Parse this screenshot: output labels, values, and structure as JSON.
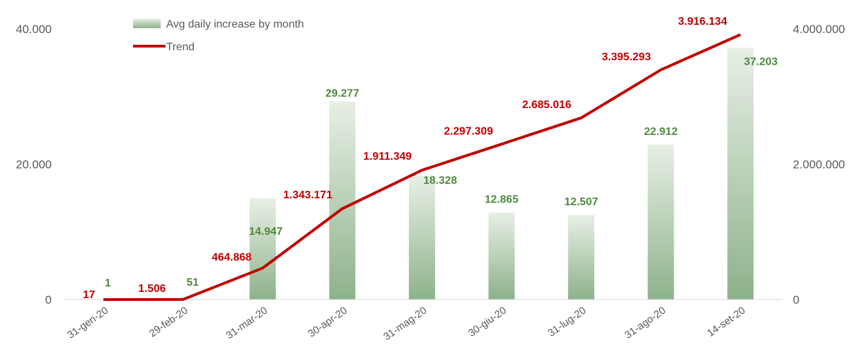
{
  "chart_data": {
    "type": "bar",
    "categories": [
      "31-gen-20",
      "29-feb-20",
      "31-mar-20",
      "30-apr-20",
      "31-mag-20",
      "30-giu-20",
      "31-lug-20",
      "31-ago-20",
      "14-set-20"
    ],
    "series": [
      {
        "name": "Avg daily increase by month",
        "type": "bar",
        "axis": "left",
        "values": [
          1,
          51,
          14947,
          29277,
          18328,
          12865,
          12507,
          22912,
          37203
        ],
        "labels": [
          "1",
          "51",
          "14.947",
          "29.277",
          "18.328",
          "12.865",
          "12.507",
          "22.912",
          "37.203"
        ]
      },
      {
        "name": "Trend",
        "type": "line",
        "axis": "right",
        "values": [
          17,
          1506,
          464868,
          1343171,
          1911349,
          2297309,
          2685016,
          3395293,
          3916134
        ],
        "labels": [
          "17",
          "1.506",
          "464.868",
          "1.343.171",
          "1.911.349",
          "2.297.309",
          "2.685.016",
          "3.395.293",
          "3.916.134"
        ]
      }
    ],
    "left_axis": {
      "ylim": [
        0,
        40000
      ],
      "ticks": [
        "0",
        "20.000",
        "40.000"
      ]
    },
    "right_axis": {
      "ylim": [
        0,
        4000000
      ],
      "ticks": [
        "0",
        "2.000.000",
        "4.000.000"
      ]
    },
    "title": "",
    "xlabel": "",
    "ylabel": "",
    "grid": false,
    "legend_position": "top-left",
    "colors": {
      "bar_top": "#e8efe6",
      "bar_bottom": "#8db28a",
      "bar_label": "#4e8a3e",
      "line": "#c00000",
      "line_label": "#c00000",
      "axis_text": "#595959",
      "baseline": "#d9d9d9"
    }
  }
}
